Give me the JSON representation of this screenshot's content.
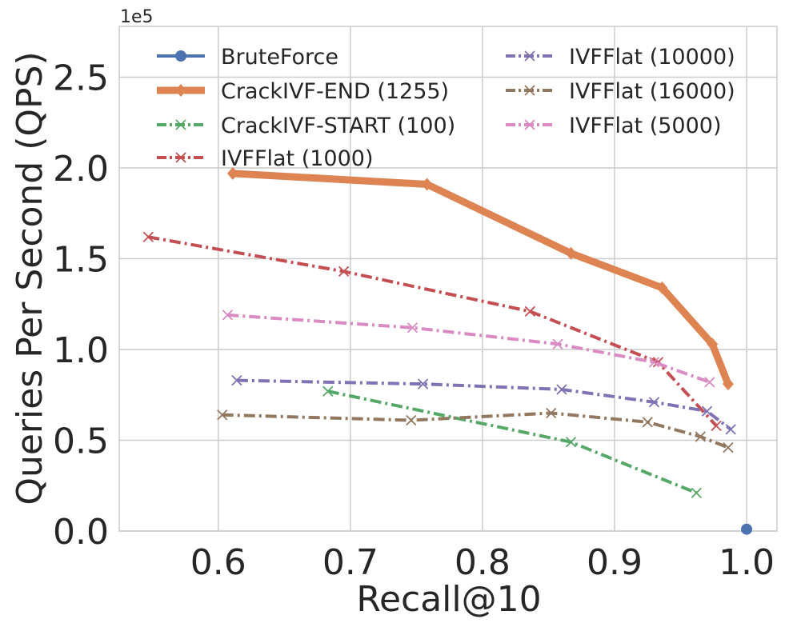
{
  "chart_data": {
    "type": "line",
    "xlabel": "Recall@10",
    "ylabel": "Queries Per Second (QPS)",
    "y_offset_label": "1e5",
    "xlim": [
      0.525,
      1.023
    ],
    "ylim": [
      0,
      2.78
    ],
    "x_ticks": [
      0.6,
      0.7,
      0.8,
      0.9,
      1.0
    ],
    "x_tick_labels": [
      "0.6",
      "0.7",
      "0.8",
      "0.9",
      "1.0"
    ],
    "y_ticks": [
      0,
      0.5,
      1.0,
      1.5,
      2.0,
      2.5
    ],
    "y_tick_labels": [
      "0.0",
      "0.5",
      "1.0",
      "1.5",
      "2.0",
      "2.5"
    ],
    "grid": true,
    "legend_position": "top",
    "series": [
      {
        "name": "BruteForce",
        "color": "#4c72b0",
        "style": "solid",
        "marker": "circle",
        "x": [
          1.0
        ],
        "y": [
          0.01
        ]
      },
      {
        "name": "CrackIVF-END (1255)",
        "color": "#dd8452",
        "style": "solid-thick",
        "marker": "diamond",
        "x": [
          0.611,
          0.758,
          0.867,
          0.936,
          0.974,
          0.986
        ],
        "y": [
          1.97,
          1.91,
          1.53,
          1.34,
          1.03,
          0.81
        ]
      },
      {
        "name": "CrackIVF-START (100)",
        "color": "#55a868",
        "style": "dashdot",
        "marker": "x",
        "x": [
          0.683,
          0.867,
          0.962
        ],
        "y": [
          0.77,
          0.49,
          0.21
        ]
      },
      {
        "name": "IVFFlat (1000)",
        "color": "#c44e52",
        "style": "dashdot",
        "marker": "x",
        "x": [
          0.547,
          0.695,
          0.836,
          0.933,
          0.977
        ],
        "y": [
          1.62,
          1.43,
          1.21,
          0.93,
          0.58
        ]
      },
      {
        "name": "IVFFlat (10000)",
        "color": "#8172b3",
        "style": "dashdot",
        "marker": "x",
        "x": [
          0.614,
          0.755,
          0.86,
          0.93,
          0.97,
          0.988
        ],
        "y": [
          0.83,
          0.81,
          0.78,
          0.71,
          0.66,
          0.56
        ]
      },
      {
        "name": "IVFFlat (16000)",
        "color": "#937860",
        "style": "dashdot",
        "marker": "x",
        "x": [
          0.603,
          0.746,
          0.852,
          0.925,
          0.965,
          0.986
        ],
        "y": [
          0.64,
          0.61,
          0.65,
          0.6,
          0.52,
          0.46
        ]
      },
      {
        "name": "IVFFlat (5000)",
        "color": "#da8bc3",
        "style": "dashdot",
        "marker": "x",
        "x": [
          0.607,
          0.747,
          0.857,
          0.93,
          0.972
        ],
        "y": [
          1.19,
          1.12,
          1.03,
          0.93,
          0.82
        ]
      }
    ]
  }
}
